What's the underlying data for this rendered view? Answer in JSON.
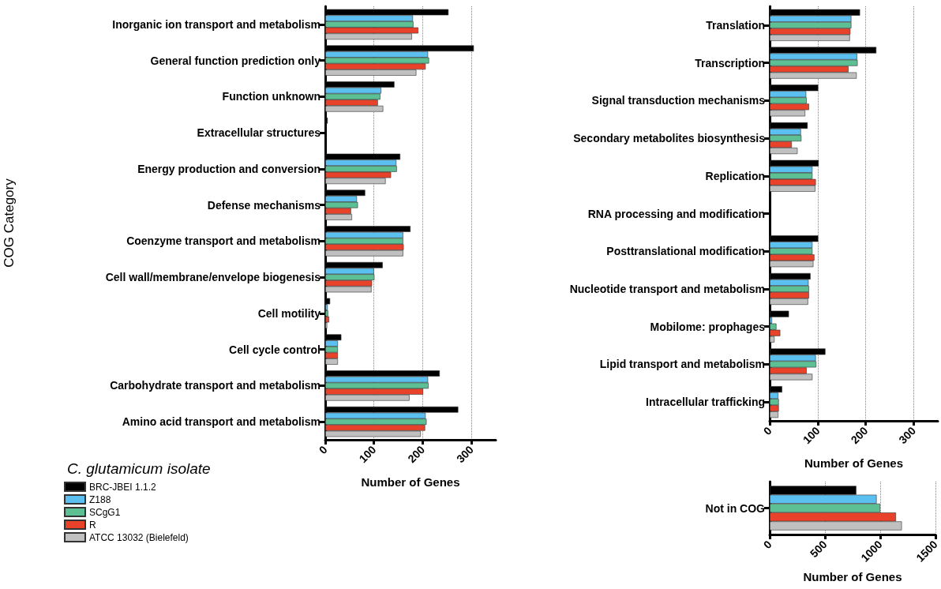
{
  "chart_data": [
    {
      "type": "bar",
      "orientation": "horizontal",
      "ylabel": "COG Category",
      "xlabel": "Number of Genes",
      "legend_title": "C. glutamicum isolate",
      "legend": "bottom left",
      "grid": "x",
      "xlim": [
        0,
        350
      ],
      "xticks": [
        0,
        100,
        200,
        300
      ],
      "categories": [
        "Inorganic ion transport and metabolism",
        "General function prediction only",
        "Function unknown",
        "Extracellular structures",
        "Energy production and conversion",
        "Defense mechanisms",
        "Coenzyme transport and metabolism",
        "Cell wall/membrane/envelope biogenesis",
        "Cell motility",
        "Cell cycle control",
        "Carbohydrate transport and metabolism",
        "Amino acid transport and metabolism"
      ],
      "series": [
        {
          "name": "BRC-JBEI 1.1.2",
          "color": "#000000",
          "values": [
            253,
            305,
            142,
            5,
            154,
            82,
            175,
            118,
            10,
            33,
            235,
            273
          ]
        },
        {
          "name": "Z188",
          "color": "#5bc0f0",
          "values": [
            180,
            211,
            115,
            0,
            146,
            65,
            160,
            100,
            5,
            26,
            211,
            206
          ]
        },
        {
          "name": "SCgG1",
          "color": "#5dbf94",
          "values": [
            181,
            213,
            113,
            0,
            147,
            67,
            160,
            101,
            6,
            26,
            212,
            208
          ]
        },
        {
          "name": "R",
          "color": "#e8432a",
          "values": [
            191,
            206,
            108,
            0,
            135,
            53,
            161,
            96,
            8,
            26,
            201,
            205
          ]
        },
        {
          "name": "ATCC 13032 (Bielefeld)",
          "color": "#c0c0c0",
          "values": [
            178,
            187,
            119,
            0,
            124,
            55,
            160,
            95,
            4,
            26,
            173,
            196
          ]
        }
      ]
    },
    {
      "type": "bar",
      "orientation": "horizontal",
      "xlabel": "Number of Genes",
      "grid": "x",
      "xlim": [
        0,
        350
      ],
      "xticks": [
        0,
        100,
        200,
        300
      ],
      "categories": [
        "Translation",
        "Transcription",
        "Signal transduction mechanisms",
        "Secondary metabolites biosynthesis",
        "Replication",
        "RNA processing and modification",
        "Posttranslational modification",
        "Nucleotide transport and metabolism",
        "Mobilome: prophages",
        "Lipid transport and metabolism",
        "Intracellular trafficking"
      ],
      "series": [
        {
          "color": "#000000",
          "values": [
            188,
            222,
            101,
            79,
            102,
            0,
            101,
            85,
            40,
            116,
            26
          ]
        },
        {
          "color": "#5bc0f0",
          "values": [
            170,
            182,
            76,
            65,
            89,
            0,
            89,
            81,
            5,
            96,
            18
          ]
        },
        {
          "color": "#5dbf94",
          "values": [
            170,
            183,
            77,
            66,
            89,
            0,
            89,
            82,
            14,
            97,
            19
          ]
        },
        {
          "color": "#e8432a",
          "values": [
            168,
            164,
            82,
            46,
            96,
            0,
            93,
            82,
            22,
            77,
            19
          ]
        },
        {
          "color": "#c0c0c0",
          "values": [
            167,
            181,
            74,
            58,
            95,
            0,
            91,
            80,
            10,
            89,
            18
          ]
        }
      ]
    },
    {
      "type": "bar",
      "orientation": "horizontal",
      "xlabel": "Number of Genes",
      "grid": "x",
      "xlim": [
        0,
        1500
      ],
      "xticks": [
        0,
        500,
        1000,
        1500
      ],
      "categories": [
        "Not in COG"
      ],
      "series": [
        {
          "color": "#000000",
          "values": [
            784
          ]
        },
        {
          "color": "#5bc0f0",
          "values": [
            968
          ]
        },
        {
          "color": "#5dbf94",
          "values": [
            1000
          ]
        },
        {
          "color": "#e8432a",
          "values": [
            1143
          ]
        },
        {
          "color": "#c0c0c0",
          "values": [
            1196
          ]
        }
      ]
    }
  ]
}
